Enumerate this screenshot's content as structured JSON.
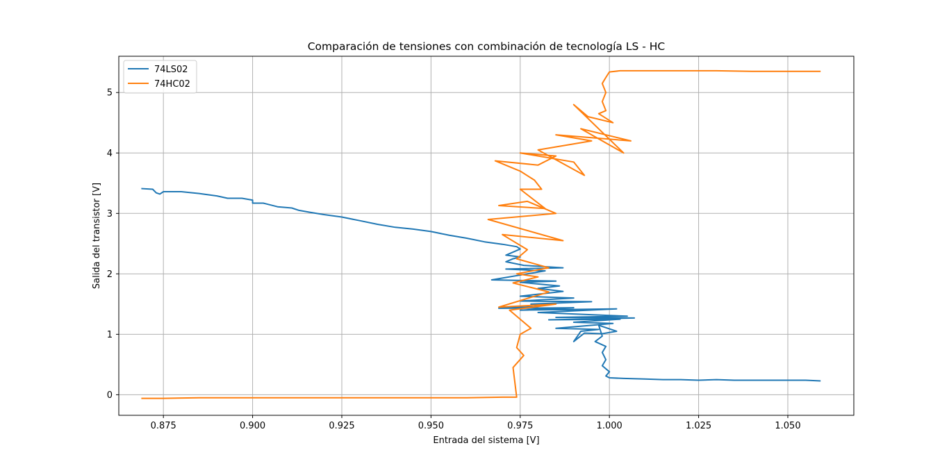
{
  "chart_data": {
    "type": "line",
    "title": "Comparación de tensiones con combinación de tecnología LS - HC",
    "xlabel": "Entrada del sistema [V]",
    "ylabel": "Salida del transistor [V]",
    "xlim": [
      0.8625,
      1.0685
    ],
    "ylim": [
      -0.34,
      5.6
    ],
    "xticks": [
      0.875,
      0.9,
      0.925,
      0.95,
      0.975,
      1.0,
      1.025,
      1.05
    ],
    "xtick_labels": [
      "0.875",
      "0.900",
      "0.925",
      "0.950",
      "0.975",
      "1.000",
      "1.025",
      "1.050"
    ],
    "yticks": [
      0,
      1,
      2,
      3,
      4,
      5
    ],
    "ytick_labels": [
      "0",
      "1",
      "2",
      "3",
      "4",
      "5"
    ],
    "grid": true,
    "legend_position": "top-left",
    "series": [
      {
        "name": "74LS02",
        "color": "#1f77b4",
        "points": [
          [
            0.869,
            3.41
          ],
          [
            0.872,
            3.4
          ],
          [
            0.873,
            3.34
          ],
          [
            0.874,
            3.32
          ],
          [
            0.875,
            3.36
          ],
          [
            0.88,
            3.36
          ],
          [
            0.885,
            3.33
          ],
          [
            0.89,
            3.29
          ],
          [
            0.893,
            3.25
          ],
          [
            0.897,
            3.25
          ],
          [
            0.9,
            3.22
          ],
          [
            0.9,
            3.17
          ],
          [
            0.903,
            3.17
          ],
          [
            0.907,
            3.11
          ],
          [
            0.911,
            3.09
          ],
          [
            0.913,
            3.05
          ],
          [
            0.916,
            3.02
          ],
          [
            0.92,
            2.98
          ],
          [
            0.925,
            2.94
          ],
          [
            0.93,
            2.88
          ],
          [
            0.935,
            2.82
          ],
          [
            0.94,
            2.77
          ],
          [
            0.945,
            2.74
          ],
          [
            0.95,
            2.7
          ],
          [
            0.955,
            2.64
          ],
          [
            0.96,
            2.59
          ],
          [
            0.965,
            2.53
          ],
          [
            0.97,
            2.49
          ],
          [
            0.974,
            2.45
          ],
          [
            0.975,
            2.41
          ],
          [
            0.971,
            2.31
          ],
          [
            0.975,
            2.28
          ],
          [
            0.973,
            2.25
          ],
          [
            0.971,
            2.2
          ],
          [
            0.976,
            2.14
          ],
          [
            0.987,
            2.1
          ],
          [
            0.971,
            2.08
          ],
          [
            0.978,
            2.06
          ],
          [
            0.982,
            2.05
          ],
          [
            0.967,
            1.9
          ],
          [
            0.985,
            1.88
          ],
          [
            0.975,
            1.86
          ],
          [
            0.986,
            1.8
          ],
          [
            0.98,
            1.76
          ],
          [
            0.987,
            1.71
          ],
          [
            0.975,
            1.63
          ],
          [
            0.99,
            1.6
          ],
          [
            0.975,
            1.55
          ],
          [
            0.995,
            1.54
          ],
          [
            0.978,
            1.5
          ],
          [
            0.98,
            1.46
          ],
          [
            0.969,
            1.43
          ],
          [
            0.99,
            1.44
          ],
          [
            0.975,
            1.4
          ],
          [
            1.002,
            1.42
          ],
          [
            0.98,
            1.36
          ],
          [
            1.005,
            1.3
          ],
          [
            0.985,
            1.28
          ],
          [
            1.007,
            1.27
          ],
          [
            0.983,
            1.24
          ],
          [
            1.003,
            1.25
          ],
          [
            0.99,
            1.2
          ],
          [
            1.001,
            1.18
          ],
          [
            0.985,
            1.1
          ],
          [
            0.997,
            1.08
          ],
          [
            0.992,
            1.05
          ],
          [
            0.99,
            0.88
          ],
          [
            0.993,
            1.02
          ],
          [
            0.998,
            1.01
          ],
          [
            1.002,
            1.05
          ],
          [
            0.997,
            1.15
          ],
          [
            0.998,
            0.97
          ],
          [
            0.996,
            0.88
          ],
          [
            0.999,
            0.8
          ],
          [
            0.998,
            0.7
          ],
          [
            0.999,
            0.58
          ],
          [
            0.998,
            0.48
          ],
          [
            1.0,
            0.38
          ],
          [
            0.999,
            0.31
          ],
          [
            1.0,
            0.28
          ],
          [
            1.004,
            0.27
          ],
          [
            1.01,
            0.26
          ],
          [
            1.015,
            0.25
          ],
          [
            1.02,
            0.25
          ],
          [
            1.025,
            0.24
          ],
          [
            1.03,
            0.25
          ],
          [
            1.035,
            0.24
          ],
          [
            1.04,
            0.24
          ],
          [
            1.045,
            0.24
          ],
          [
            1.05,
            0.24
          ],
          [
            1.055,
            0.24
          ],
          [
            1.059,
            0.23
          ]
        ]
      },
      {
        "name": "74HC02",
        "color": "#ff7f0e",
        "points": [
          [
            0.869,
            -0.06
          ],
          [
            0.875,
            -0.06
          ],
          [
            0.885,
            -0.05
          ],
          [
            0.9,
            -0.05
          ],
          [
            0.915,
            -0.05
          ],
          [
            0.93,
            -0.05
          ],
          [
            0.945,
            -0.05
          ],
          [
            0.96,
            -0.05
          ],
          [
            0.97,
            -0.04
          ],
          [
            0.974,
            -0.04
          ],
          [
            0.973,
            0.45
          ],
          [
            0.976,
            0.65
          ],
          [
            0.974,
            0.78
          ],
          [
            0.975,
            1.0
          ],
          [
            0.978,
            1.1
          ],
          [
            0.972,
            1.4
          ],
          [
            0.985,
            1.5
          ],
          [
            0.969,
            1.45
          ],
          [
            0.983,
            1.7
          ],
          [
            0.973,
            1.85
          ],
          [
            0.98,
            1.95
          ],
          [
            0.974,
            2.0
          ],
          [
            0.983,
            2.1
          ],
          [
            0.974,
            2.25
          ],
          [
            0.977,
            2.4
          ],
          [
            0.97,
            2.65
          ],
          [
            0.987,
            2.55
          ],
          [
            0.966,
            2.9
          ],
          [
            0.985,
            3.0
          ],
          [
            0.977,
            3.2
          ],
          [
            0.969,
            3.13
          ],
          [
            0.982,
            3.08
          ],
          [
            0.975,
            3.4
          ],
          [
            0.981,
            3.4
          ],
          [
            0.979,
            3.55
          ],
          [
            0.975,
            3.7
          ],
          [
            0.968,
            3.87
          ],
          [
            0.98,
            3.8
          ],
          [
            0.985,
            3.95
          ],
          [
            0.975,
            4.0
          ],
          [
            0.99,
            3.85
          ],
          [
            0.993,
            3.63
          ],
          [
            0.98,
            4.05
          ],
          [
            0.995,
            4.2
          ],
          [
            0.985,
            4.3
          ],
          [
            1.006,
            4.2
          ],
          [
            0.992,
            4.4
          ],
          [
            1.004,
            4.0
          ],
          [
            0.99,
            4.8
          ],
          [
            0.994,
            4.6
          ],
          [
            1.001,
            4.5
          ],
          [
            0.997,
            4.65
          ],
          [
            0.999,
            4.7
          ],
          [
            0.998,
            4.85
          ],
          [
            0.999,
            5.0
          ],
          [
            0.998,
            5.15
          ],
          [
            0.999,
            5.25
          ],
          [
            1.0,
            5.34
          ],
          [
            1.003,
            5.36
          ],
          [
            1.01,
            5.36
          ],
          [
            1.02,
            5.36
          ],
          [
            1.03,
            5.36
          ],
          [
            1.04,
            5.35
          ],
          [
            1.05,
            5.35
          ],
          [
            1.059,
            5.35
          ]
        ]
      }
    ]
  }
}
